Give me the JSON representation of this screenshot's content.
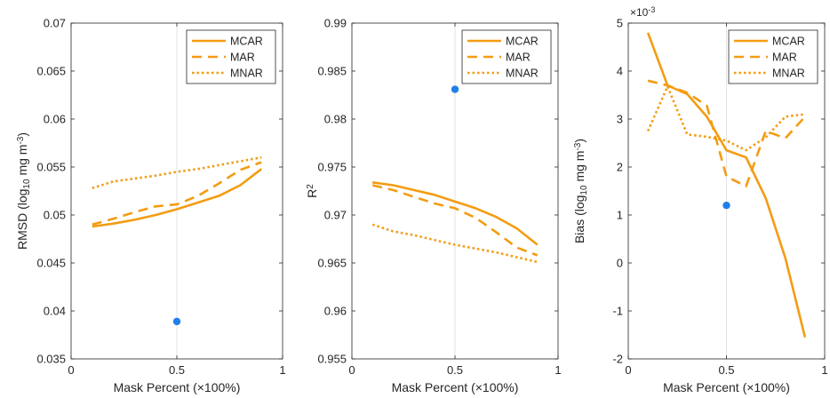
{
  "colors": {
    "series": "#F39C12",
    "marker": "#1f7fe8",
    "grid": "#e3e3e3",
    "axis": "#262626"
  },
  "chart_data": [
    {
      "type": "line",
      "xlabel": "Mask Percent (×100%)",
      "ylabel_main": "RMSD (log",
      "ylabel_sub": "10",
      "ylabel_tail": " mg m",
      "ylabel_sup": "-3",
      "ylabel_end": ")",
      "xlim": [
        0,
        1
      ],
      "ylim": [
        0.035,
        0.07
      ],
      "xticks": [
        0,
        0.5,
        1
      ],
      "xtick_labels": [
        "0",
        "0.5",
        "1"
      ],
      "yticks": [
        0.035,
        0.04,
        0.045,
        0.05,
        0.055,
        0.06,
        0.065,
        0.07
      ],
      "ytick_labels": [
        "0.035",
        "0.04",
        "0.045",
        "0.05",
        "0.055",
        "0.06",
        "0.065",
        "0.07"
      ],
      "grid_x": [
        0.5
      ],
      "legend": "top-right",
      "series": [
        {
          "name": "MCAR",
          "dash": "solid",
          "x": [
            0.1,
            0.2,
            0.3,
            0.4,
            0.5,
            0.6,
            0.7,
            0.8,
            0.9
          ],
          "y": [
            0.0488,
            0.0491,
            0.0495,
            0.05,
            0.0506,
            0.0513,
            0.052,
            0.0531,
            0.0548
          ]
        },
        {
          "name": "MAR",
          "dash": "dashed",
          "x": [
            0.1,
            0.2,
            0.3,
            0.4,
            0.5,
            0.6,
            0.7,
            0.8,
            0.9
          ],
          "y": [
            0.049,
            0.0496,
            0.0503,
            0.0509,
            0.0511,
            0.052,
            0.0533,
            0.0547,
            0.0555
          ]
        },
        {
          "name": "MNAR",
          "dash": "dotted",
          "x": [
            0.1,
            0.2,
            0.3,
            0.4,
            0.5,
            0.6,
            0.7,
            0.8,
            0.9
          ],
          "y": [
            0.0528,
            0.0535,
            0.0538,
            0.0541,
            0.0545,
            0.0548,
            0.0552,
            0.0556,
            0.056
          ]
        }
      ],
      "point": {
        "x": 0.5,
        "y": 0.0389
      }
    },
    {
      "type": "line",
      "xlabel": "Mask Percent (×100%)",
      "ylabel_main": "R",
      "ylabel_sup": "2",
      "xlim": [
        0,
        1
      ],
      "ylim": [
        0.955,
        0.99
      ],
      "xticks": [
        0,
        0.5,
        1
      ],
      "xtick_labels": [
        "0",
        "0.5",
        "1"
      ],
      "yticks": [
        0.955,
        0.96,
        0.965,
        0.97,
        0.975,
        0.98,
        0.985,
        0.99
      ],
      "ytick_labels": [
        "0.955",
        "0.96",
        "0.965",
        "0.97",
        "0.975",
        "0.98",
        "0.985",
        "0.99"
      ],
      "grid_x": [
        0.5
      ],
      "legend": "top-right",
      "series": [
        {
          "name": "MCAR",
          "dash": "solid",
          "x": [
            0.1,
            0.2,
            0.3,
            0.4,
            0.5,
            0.6,
            0.7,
            0.8,
            0.9
          ],
          "y": [
            0.9734,
            0.9731,
            0.9726,
            0.9721,
            0.9714,
            0.9707,
            0.9698,
            0.9686,
            0.9669
          ]
        },
        {
          "name": "MAR",
          "dash": "dashed",
          "x": [
            0.1,
            0.2,
            0.3,
            0.4,
            0.5,
            0.6,
            0.7,
            0.8,
            0.9
          ],
          "y": [
            0.9731,
            0.9726,
            0.9719,
            0.9712,
            0.9707,
            0.9697,
            0.9682,
            0.9666,
            0.9658
          ]
        },
        {
          "name": "MNAR",
          "dash": "dotted",
          "x": [
            0.1,
            0.2,
            0.3,
            0.4,
            0.5,
            0.6,
            0.7,
            0.8,
            0.9
          ],
          "y": [
            0.969,
            0.9683,
            0.9679,
            0.9674,
            0.9669,
            0.9665,
            0.9661,
            0.9656,
            0.9651
          ]
        }
      ],
      "point": {
        "x": 0.5,
        "y": 0.9831
      }
    },
    {
      "type": "line",
      "xlabel": "Mask Percent (×100%)",
      "ylabel_main": "Bias (log",
      "ylabel_sub": "10",
      "ylabel_tail": " mg m",
      "ylabel_sup": "-3",
      "ylabel_end": ")",
      "y_multiplier_base": "×10",
      "y_multiplier_exp": "-3",
      "xlim": [
        0,
        1
      ],
      "ylim": [
        -2,
        5
      ],
      "xticks": [
        0,
        0.5,
        1
      ],
      "xtick_labels": [
        "0",
        "0.5",
        "1"
      ],
      "yticks": [
        -2,
        -1,
        0,
        1,
        2,
        3,
        4,
        5
      ],
      "ytick_labels": [
        "-2",
        "-1",
        "0",
        "1",
        "2",
        "3",
        "4",
        "5"
      ],
      "grid_x": [
        0.5
      ],
      "legend": "top-right",
      "series": [
        {
          "name": "MCAR",
          "dash": "solid",
          "x": [
            0.1,
            0.2,
            0.3,
            0.4,
            0.5,
            0.6,
            0.7,
            0.8,
            0.9
          ],
          "y": [
            4.8,
            3.7,
            3.52,
            3.05,
            2.35,
            2.2,
            1.35,
            0.1,
            -1.55
          ]
        },
        {
          "name": "MAR",
          "dash": "dashed",
          "x": [
            0.1,
            0.2,
            0.3,
            0.4,
            0.5,
            0.6,
            0.7,
            0.8,
            0.9
          ],
          "y": [
            3.8,
            3.7,
            3.55,
            3.28,
            1.8,
            1.6,
            2.75,
            2.6,
            3.05
          ]
        },
        {
          "name": "MNAR",
          "dash": "dotted",
          "x": [
            0.1,
            0.2,
            0.3,
            0.4,
            0.5,
            0.6,
            0.7,
            0.8,
            0.9
          ],
          "y": [
            2.75,
            3.68,
            2.68,
            2.63,
            2.55,
            2.35,
            2.62,
            3.05,
            3.1
          ]
        }
      ],
      "point": {
        "x": 0.5,
        "y": 1.2
      }
    }
  ]
}
